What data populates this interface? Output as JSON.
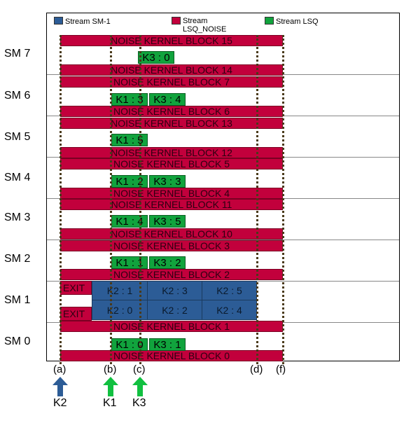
{
  "legend": [
    {
      "label": "Stream SM-1",
      "color": "#2c5c96"
    },
    {
      "label": "Stream\nLSQ_NOISE",
      "color": "#c2003c"
    },
    {
      "label": "Stream LSQ",
      "color": "#11a33d"
    }
  ],
  "sm_labels": [
    "SM 7",
    "SM 6",
    "SM 5",
    "SM 4",
    "SM 3",
    "SM 2",
    "SM 1",
    "SM 0"
  ],
  "noise_blocks": [
    "NOISE KERNEL BLOCK 15",
    "NOISE KERNEL BLOCK 14",
    "NOISE KERNEL BLOCK 7",
    "NOISE KERNEL BLOCK 6",
    "NOISE KERNEL BLOCK 13",
    "NOISE KERNEL BLOCK 12",
    "NOISE KERNEL BLOCK 5",
    "NOISE KERNEL BLOCK 4",
    "NOISE KERNEL BLOCK 11",
    "NOISE KERNEL BLOCK 10",
    "NOISE KERNEL BLOCK 3",
    "NOISE KERNEL BLOCK 2",
    "NOISE KERNEL BLOCK 1",
    "NOISE KERNEL BLOCK 0"
  ],
  "k1_blocks": [
    "K1 : 3",
    "K1 : 5",
    "K1 : 2",
    "K1 : 4",
    "K1 : 1",
    "K1 : 0"
  ],
  "k3_blocks": [
    "K3 : 0",
    "K3 : 4",
    "K3 : 3",
    "K3 : 5",
    "K3 : 2",
    "K3 : 1"
  ],
  "k2_blocks": [
    "K2 : 1",
    "K2 : 3",
    "K2 : 5",
    "K2 : 0",
    "K2 : 2",
    "K2 : 4"
  ],
  "exit_label": "EXIT",
  "markers": [
    "(a)",
    "(b)",
    "(c)",
    "(d)",
    "(f)"
  ],
  "kernels": [
    {
      "label": "K2",
      "color": "#2c5c96"
    },
    {
      "label": "K1",
      "color": "#11c040"
    },
    {
      "label": "K3",
      "color": "#11c040"
    }
  ]
}
